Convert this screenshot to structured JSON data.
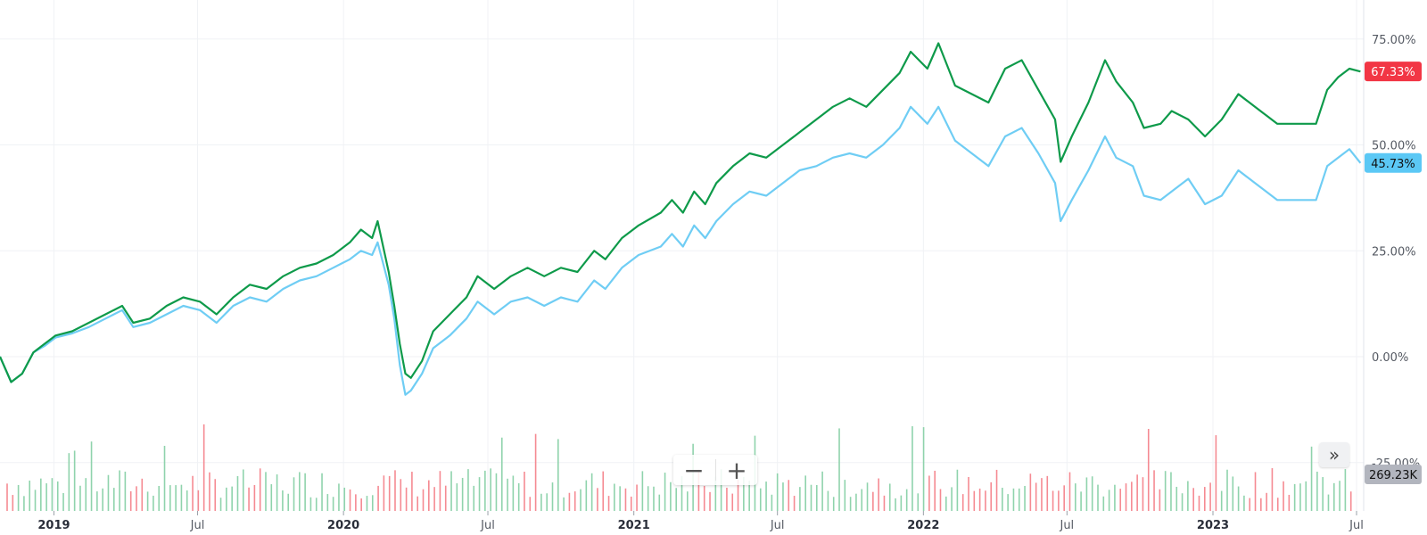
{
  "chart_data": {
    "type": "line",
    "y_axis": {
      "ticks": [
        "75.00%",
        "50.00%",
        "25.00%",
        "0.00%",
        "-25.00%"
      ],
      "range": [
        -35,
        85
      ]
    },
    "x_axis": {
      "tick_labels": [
        "2019",
        "Jul",
        "2020",
        "Jul",
        "2021",
        "Jul",
        "2022",
        "Jul",
        "2023",
        "Jul"
      ],
      "range": [
        "2018-10-25",
        "2023-07-10"
      ]
    },
    "grid": true,
    "series": [
      {
        "color": "#0e9a4a",
        "last_value_label": "67.33%",
        "label_color": "#f23645",
        "points": [
          [
            "2018-10-25",
            0
          ],
          [
            "2018-11-08",
            -6
          ],
          [
            "2018-11-22",
            -4
          ],
          [
            "2018-12-06",
            1
          ],
          [
            "2018-12-20",
            3
          ],
          [
            "2019-01-03",
            5
          ],
          [
            "2019-01-24",
            6
          ],
          [
            "2019-02-14",
            8
          ],
          [
            "2019-03-07",
            10
          ],
          [
            "2019-03-28",
            12
          ],
          [
            "2019-04-11",
            8
          ],
          [
            "2019-05-02",
            9
          ],
          [
            "2019-05-23",
            12
          ],
          [
            "2019-06-13",
            14
          ],
          [
            "2019-07-04",
            13
          ],
          [
            "2019-07-25",
            10
          ],
          [
            "2019-08-15",
            14
          ],
          [
            "2019-09-05",
            17
          ],
          [
            "2019-09-26",
            16
          ],
          [
            "2019-10-17",
            19
          ],
          [
            "2019-11-07",
            21
          ],
          [
            "2019-11-28",
            22
          ],
          [
            "2019-12-19",
            24
          ],
          [
            "2020-01-09",
            27
          ],
          [
            "2020-01-23",
            30
          ],
          [
            "2020-02-06",
            28
          ],
          [
            "2020-02-13",
            32
          ],
          [
            "2020-02-27",
            20
          ],
          [
            "2020-03-05",
            12
          ],
          [
            "2020-03-12",
            3
          ],
          [
            "2020-03-19",
            -4
          ],
          [
            "2020-03-26",
            -5
          ],
          [
            "2020-04-09",
            -1
          ],
          [
            "2020-04-23",
            6
          ],
          [
            "2020-05-14",
            10
          ],
          [
            "2020-06-04",
            14
          ],
          [
            "2020-06-18",
            19
          ],
          [
            "2020-07-09",
            16
          ],
          [
            "2020-07-30",
            19
          ],
          [
            "2020-08-20",
            21
          ],
          [
            "2020-09-10",
            19
          ],
          [
            "2020-10-01",
            21
          ],
          [
            "2020-10-22",
            20
          ],
          [
            "2020-11-12",
            25
          ],
          [
            "2020-11-26",
            23
          ],
          [
            "2020-12-17",
            28
          ],
          [
            "2021-01-07",
            31
          ],
          [
            "2021-02-04",
            34
          ],
          [
            "2021-02-18",
            37
          ],
          [
            "2021-03-04",
            34
          ],
          [
            "2021-03-18",
            39
          ],
          [
            "2021-04-01",
            36
          ],
          [
            "2021-04-15",
            41
          ],
          [
            "2021-05-06",
            45
          ],
          [
            "2021-05-27",
            48
          ],
          [
            "2021-06-17",
            47
          ],
          [
            "2021-07-08",
            50
          ],
          [
            "2021-07-29",
            53
          ],
          [
            "2021-08-19",
            56
          ],
          [
            "2021-09-09",
            59
          ],
          [
            "2021-09-30",
            61
          ],
          [
            "2021-10-21",
            59
          ],
          [
            "2021-11-11",
            63
          ],
          [
            "2021-12-02",
            67
          ],
          [
            "2021-12-16",
            72
          ],
          [
            "2022-01-06",
            68
          ],
          [
            "2022-01-20",
            74
          ],
          [
            "2022-02-10",
            64
          ],
          [
            "2022-03-03",
            62
          ],
          [
            "2022-03-24",
            60
          ],
          [
            "2022-04-14",
            68
          ],
          [
            "2022-05-05",
            70
          ],
          [
            "2022-05-26",
            63
          ],
          [
            "2022-06-16",
            56
          ],
          [
            "2022-06-23",
            46
          ],
          [
            "2022-07-07",
            52
          ],
          [
            "2022-07-28",
            60
          ],
          [
            "2022-08-18",
            70
          ],
          [
            "2022-09-01",
            65
          ],
          [
            "2022-09-22",
            60
          ],
          [
            "2022-10-06",
            54
          ],
          [
            "2022-10-27",
            55
          ],
          [
            "2022-11-10",
            58
          ],
          [
            "2022-12-01",
            56
          ],
          [
            "2022-12-22",
            52
          ],
          [
            "2023-01-12",
            56
          ],
          [
            "2023-02-02",
            62
          ],
          [
            "2023-02-23",
            59
          ],
          [
            "2023-03-09",
            57
          ],
          [
            "2023-03-23",
            55
          ],
          [
            "2023-05-11",
            55
          ],
          [
            "2023-05-25",
            63
          ],
          [
            "2023-06-08",
            66
          ],
          [
            "2023-06-22",
            68
          ],
          [
            "2023-07-06",
            67.33
          ]
        ]
      },
      {
        "color": "#6fcdf4",
        "last_value_label": "45.73%",
        "label_color": "#5bc8f5",
        "points": [
          [
            "2018-10-25",
            0
          ],
          [
            "2018-11-08",
            -6
          ],
          [
            "2018-11-22",
            -4
          ],
          [
            "2018-12-06",
            1
          ],
          [
            "2018-12-20",
            2.5
          ],
          [
            "2019-01-03",
            4.5
          ],
          [
            "2019-01-24",
            5.5
          ],
          [
            "2019-02-14",
            7
          ],
          [
            "2019-03-07",
            9
          ],
          [
            "2019-03-28",
            11
          ],
          [
            "2019-04-11",
            7
          ],
          [
            "2019-05-02",
            8
          ],
          [
            "2019-05-23",
            10
          ],
          [
            "2019-06-13",
            12
          ],
          [
            "2019-07-04",
            11
          ],
          [
            "2019-07-25",
            8
          ],
          [
            "2019-08-15",
            12
          ],
          [
            "2019-09-05",
            14
          ],
          [
            "2019-09-26",
            13
          ],
          [
            "2019-10-17",
            16
          ],
          [
            "2019-11-07",
            18
          ],
          [
            "2019-11-28",
            19
          ],
          [
            "2019-12-19",
            21
          ],
          [
            "2020-01-09",
            23
          ],
          [
            "2020-01-23",
            25
          ],
          [
            "2020-02-06",
            24
          ],
          [
            "2020-02-13",
            27
          ],
          [
            "2020-02-27",
            17
          ],
          [
            "2020-03-05",
            9
          ],
          [
            "2020-03-12",
            -2
          ],
          [
            "2020-03-19",
            -9
          ],
          [
            "2020-03-26",
            -8
          ],
          [
            "2020-04-09",
            -4
          ],
          [
            "2020-04-23",
            2
          ],
          [
            "2020-05-14",
            5
          ],
          [
            "2020-06-04",
            9
          ],
          [
            "2020-06-18",
            13
          ],
          [
            "2020-07-09",
            10
          ],
          [
            "2020-07-30",
            13
          ],
          [
            "2020-08-20",
            14
          ],
          [
            "2020-09-10",
            12
          ],
          [
            "2020-10-01",
            14
          ],
          [
            "2020-10-22",
            13
          ],
          [
            "2020-11-12",
            18
          ],
          [
            "2020-11-26",
            16
          ],
          [
            "2020-12-17",
            21
          ],
          [
            "2021-01-07",
            24
          ],
          [
            "2021-02-04",
            26
          ],
          [
            "2021-02-18",
            29
          ],
          [
            "2021-03-04",
            26
          ],
          [
            "2021-03-18",
            31
          ],
          [
            "2021-04-01",
            28
          ],
          [
            "2021-04-15",
            32
          ],
          [
            "2021-05-06",
            36
          ],
          [
            "2021-05-27",
            39
          ],
          [
            "2021-06-17",
            38
          ],
          [
            "2021-07-08",
            41
          ],
          [
            "2021-07-29",
            44
          ],
          [
            "2021-08-19",
            45
          ],
          [
            "2021-09-09",
            47
          ],
          [
            "2021-09-30",
            48
          ],
          [
            "2021-10-21",
            47
          ],
          [
            "2021-11-11",
            50
          ],
          [
            "2021-12-02",
            54
          ],
          [
            "2021-12-16",
            59
          ],
          [
            "2022-01-06",
            55
          ],
          [
            "2022-01-20",
            59
          ],
          [
            "2022-02-10",
            51
          ],
          [
            "2022-03-03",
            48
          ],
          [
            "2022-03-24",
            45
          ],
          [
            "2022-04-14",
            52
          ],
          [
            "2022-05-05",
            54
          ],
          [
            "2022-05-26",
            48
          ],
          [
            "2022-06-16",
            41
          ],
          [
            "2022-06-23",
            32
          ],
          [
            "2022-07-07",
            37
          ],
          [
            "2022-07-28",
            44
          ],
          [
            "2022-08-18",
            52
          ],
          [
            "2022-09-01",
            47
          ],
          [
            "2022-09-22",
            45
          ],
          [
            "2022-10-06",
            38
          ],
          [
            "2022-10-27",
            37
          ],
          [
            "2022-11-10",
            39
          ],
          [
            "2022-12-01",
            42
          ],
          [
            "2022-12-22",
            36
          ],
          [
            "2023-01-12",
            38
          ],
          [
            "2023-02-02",
            44
          ],
          [
            "2023-02-23",
            41
          ],
          [
            "2023-03-09",
            39
          ],
          [
            "2023-03-23",
            37
          ],
          [
            "2023-05-11",
            37
          ],
          [
            "2023-05-25",
            45
          ],
          [
            "2023-06-08",
            47
          ],
          [
            "2023-06-22",
            49
          ],
          [
            "2023-07-06",
            45.73
          ]
        ]
      }
    ],
    "volume": {
      "last_value_label": "269.23K",
      "up_color": "#8fd3ac",
      "down_color": "#f58a92"
    }
  },
  "controls": {
    "zoom_out_label": "−",
    "zoom_in_label": "+",
    "scroll_right_label": "»"
  }
}
